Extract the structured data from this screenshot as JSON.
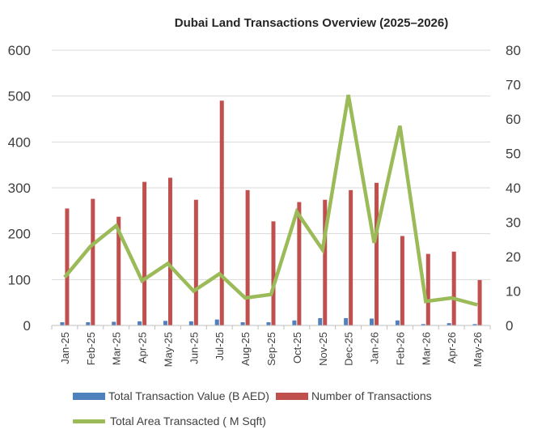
{
  "chart_data": {
    "type": "bar",
    "title": "Dubai Land Transactions Overview (2025–2026)",
    "categories": [
      "Jan-25",
      "Feb-25",
      "Mar-25",
      "Apr-25",
      "May-25",
      "Jun-25",
      "Jul-25",
      "Aug-25",
      "Sep-25",
      "Oct-25",
      "Nov-25",
      "Dec-25",
      "Jan-26",
      "Feb-26",
      "Mar-26",
      "Apr-26",
      "May-26"
    ],
    "y_left": {
      "ylim": [
        0,
        600
      ],
      "ticks": [
        0,
        100,
        200,
        300,
        400,
        500,
        600
      ]
    },
    "y_right": {
      "ylim": [
        0,
        80
      ],
      "ticks": [
        0,
        10,
        20,
        30,
        40,
        50,
        60,
        70,
        80
      ]
    },
    "series": [
      {
        "name": "Total Transaction Value (B AED)",
        "type": "bar",
        "axis": "left",
        "color": "#4f81bd",
        "values": [
          7,
          7,
          8,
          9,
          10,
          9,
          13,
          7,
          7,
          11,
          16,
          16,
          15,
          11,
          3,
          5,
          3
        ]
      },
      {
        "name": "Number of Transactions",
        "type": "bar",
        "axis": "left",
        "color": "#c0504d",
        "values": [
          255,
          276,
          237,
          313,
          322,
          274,
          490,
          295,
          227,
          269,
          274,
          295,
          311,
          195,
          156,
          161,
          99
        ]
      },
      {
        "name": "Total Area Transacted ( M Sqft)",
        "type": "line",
        "axis": "right",
        "color": "#9bbb59",
        "values": [
          14,
          23,
          29,
          13,
          18,
          10,
          15,
          8,
          9,
          33,
          22,
          67,
          24,
          58,
          7,
          8,
          6
        ]
      }
    ],
    "legend_position": "bottom",
    "grid": true
  }
}
